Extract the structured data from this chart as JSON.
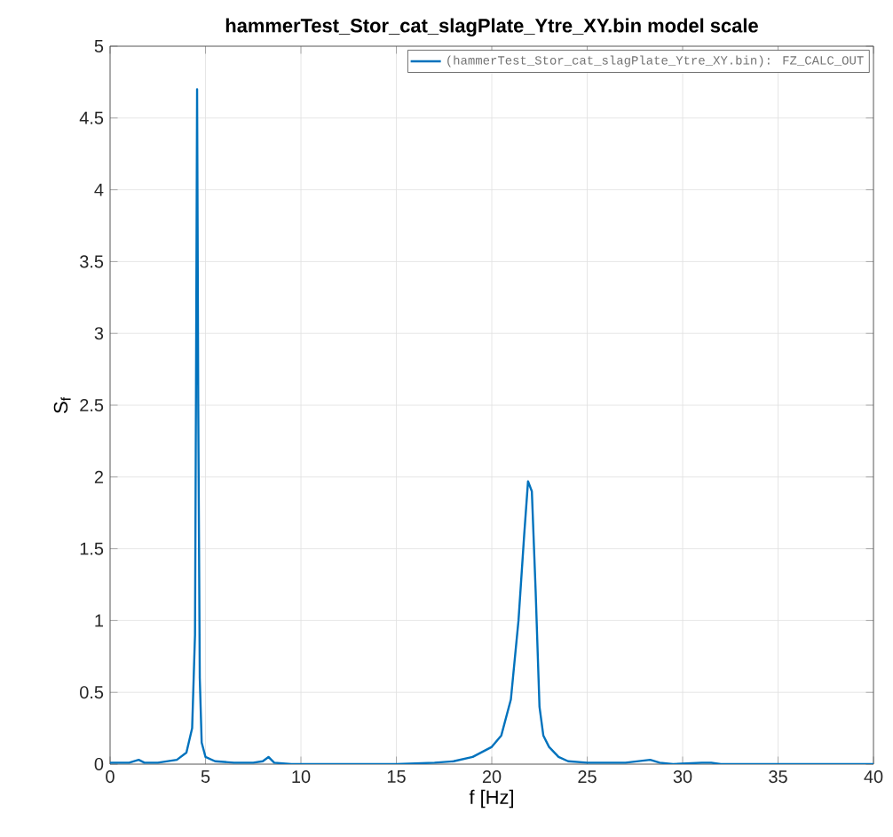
{
  "chart_data": {
    "type": "line",
    "title": "hammerTest_Stor_cat_slagPlate_Ytre_XY.bin  model scale",
    "xlabel": "f [Hz]",
    "ylabel": "S$_{f}$",
    "series": [
      {
        "name": "(hammerTest_Stor_cat_slagPlate_Ytre_XY.bin): FZ_CALC_OUT",
        "color": "#0072bd",
        "x": [
          0,
          1,
          1.5,
          1.8,
          2.5,
          3.5,
          4.0,
          4.3,
          4.45,
          4.5,
          4.56,
          4.62,
          4.7,
          4.8,
          5,
          5.5,
          6.5,
          7.5,
          8.0,
          8.3,
          8.6,
          9.5,
          12,
          15,
          17,
          18,
          19,
          20,
          20.5,
          21,
          21.4,
          21.7,
          21.9,
          22.1,
          22.3,
          22.5,
          22.7,
          23,
          23.5,
          24,
          25,
          27,
          28.3,
          28.8,
          29.5,
          31,
          31.5,
          32,
          35,
          40
        ],
        "values": [
          0.01,
          0.01,
          0.03,
          0.01,
          0.01,
          0.03,
          0.08,
          0.25,
          0.9,
          2.5,
          4.7,
          2.5,
          0.6,
          0.15,
          0.05,
          0.02,
          0.01,
          0.01,
          0.02,
          0.05,
          0.01,
          0,
          0,
          0,
          0.01,
          0.02,
          0.05,
          0.12,
          0.2,
          0.45,
          1.0,
          1.6,
          1.97,
          1.9,
          1.2,
          0.4,
          0.2,
          0.12,
          0.05,
          0.02,
          0.01,
          0.01,
          0.03,
          0.01,
          0,
          0.01,
          0.01,
          0,
          0,
          0
        ]
      }
    ],
    "xlim": [
      0,
      40
    ],
    "ylim": [
      0,
      5
    ],
    "xticks": [
      0,
      5,
      10,
      15,
      20,
      25,
      30,
      35,
      40
    ],
    "yticks": [
      0,
      0.5,
      1,
      1.5,
      2,
      2.5,
      3,
      3.5,
      4,
      4.5,
      5
    ],
    "grid": true,
    "legend": "top right",
    "marker": "none",
    "line_style": "solid"
  }
}
